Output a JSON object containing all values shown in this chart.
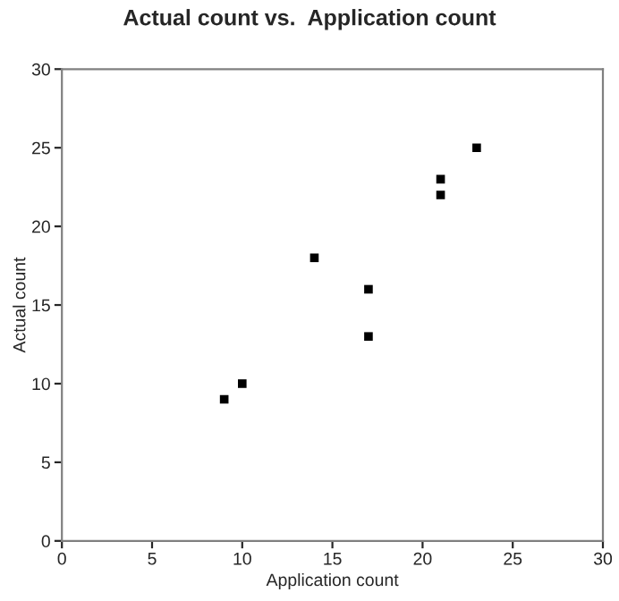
{
  "chart_data": {
    "type": "scatter",
    "title": "Actual count vs.  Application count",
    "xlabel": "Application count",
    "ylabel": "Actual count",
    "x": [
      9,
      10,
      14,
      17,
      17,
      21,
      21,
      23
    ],
    "values": [
      9,
      10,
      18,
      16,
      13,
      23,
      22,
      25
    ],
    "color": "#000000",
    "marker": "square",
    "xlim": [
      0,
      30
    ],
    "ylim": [
      0,
      30
    ],
    "xticks": [
      0,
      5,
      10,
      15,
      20,
      25,
      30
    ],
    "yticks": [
      0,
      5,
      10,
      15,
      20,
      25,
      30
    ],
    "grid": false,
    "legend": false
  }
}
